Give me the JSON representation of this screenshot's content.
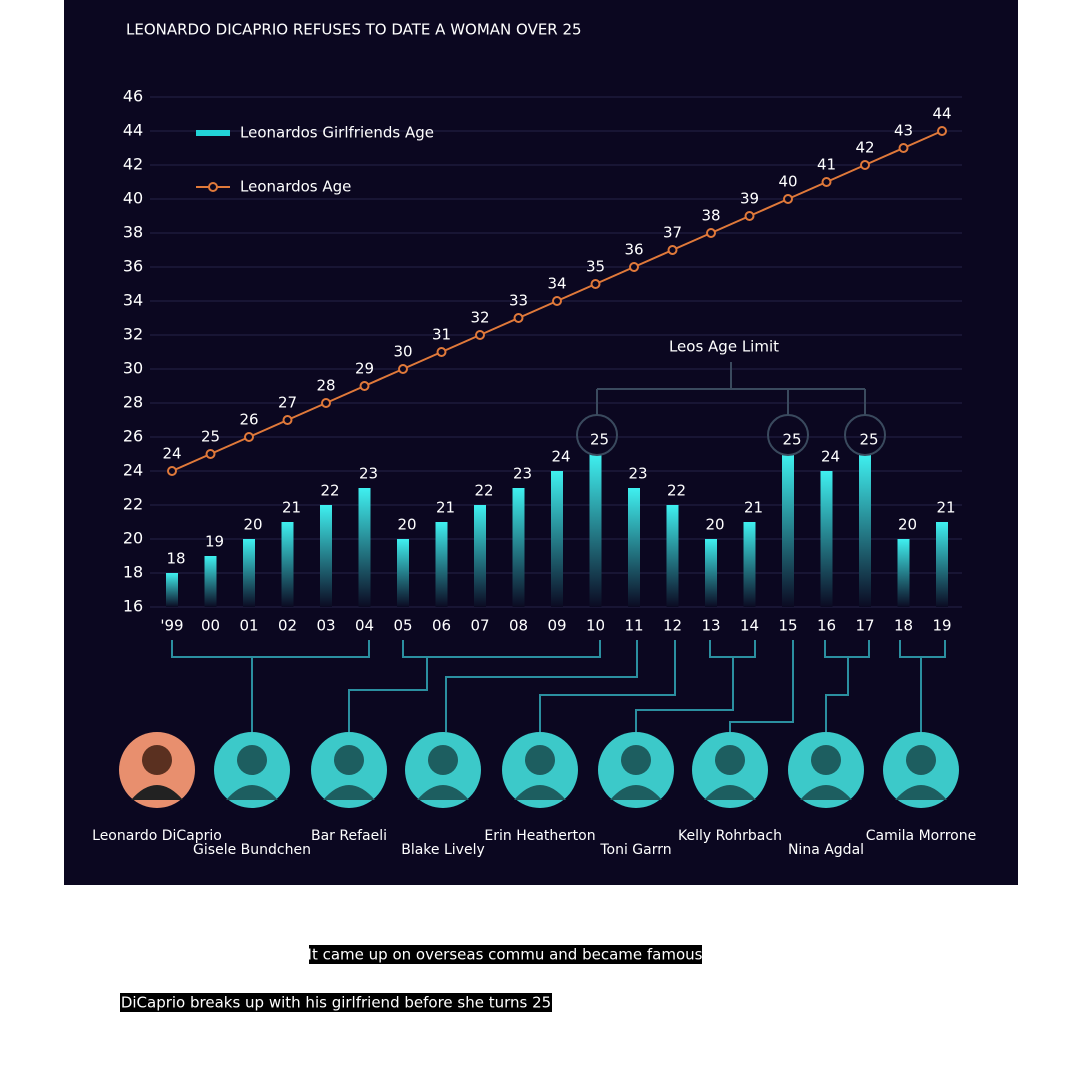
{
  "chart_data": {
    "type": "bar_line",
    "title": "LEONARDO DICAPRIO REFUSES TO DATE A WOMAN OVER 25",
    "categories": [
      "'99",
      "00",
      "01",
      "02",
      "03",
      "04",
      "05",
      "06",
      "07",
      "08",
      "09",
      "10",
      "11",
      "12",
      "13",
      "14",
      "15",
      "16",
      "17",
      "18",
      "19"
    ],
    "series": [
      {
        "name": "Leonardos Girlfriends Age",
        "color": "#22d3d8",
        "kind": "bar",
        "values": [
          18,
          19,
          20,
          21,
          22,
          23,
          20,
          21,
          22,
          23,
          24,
          25,
          23,
          22,
          20,
          21,
          25,
          24,
          25,
          20,
          21
        ]
      },
      {
        "name": "Leonardos Age",
        "color": "#e0793a",
        "kind": "line",
        "values": [
          24,
          25,
          26,
          27,
          28,
          29,
          30,
          31,
          32,
          33,
          34,
          35,
          36,
          37,
          38,
          39,
          40,
          41,
          42,
          43,
          44
        ]
      }
    ],
    "ylim": [
      16,
      46
    ],
    "yticks": [
      16,
      18,
      20,
      22,
      24,
      26,
      28,
      30,
      32,
      34,
      36,
      38,
      40,
      42,
      44,
      46
    ],
    "grid": true,
    "annotation": "Leos Age Limit"
  },
  "people": [
    "Leonardo DiCaprio",
    "Gisele Bundchen",
    "Bar Refaeli",
    "Blake Lively",
    "Erin Heatherton",
    "Toni Garrn",
    "Kelly Rohrbach",
    "Nina Agdal",
    "Camila Morrone"
  ],
  "captions": [
    "It came up on overseas commu and became famous",
    "DiCaprio breaks up with his girlfriend before she turns 25"
  ]
}
